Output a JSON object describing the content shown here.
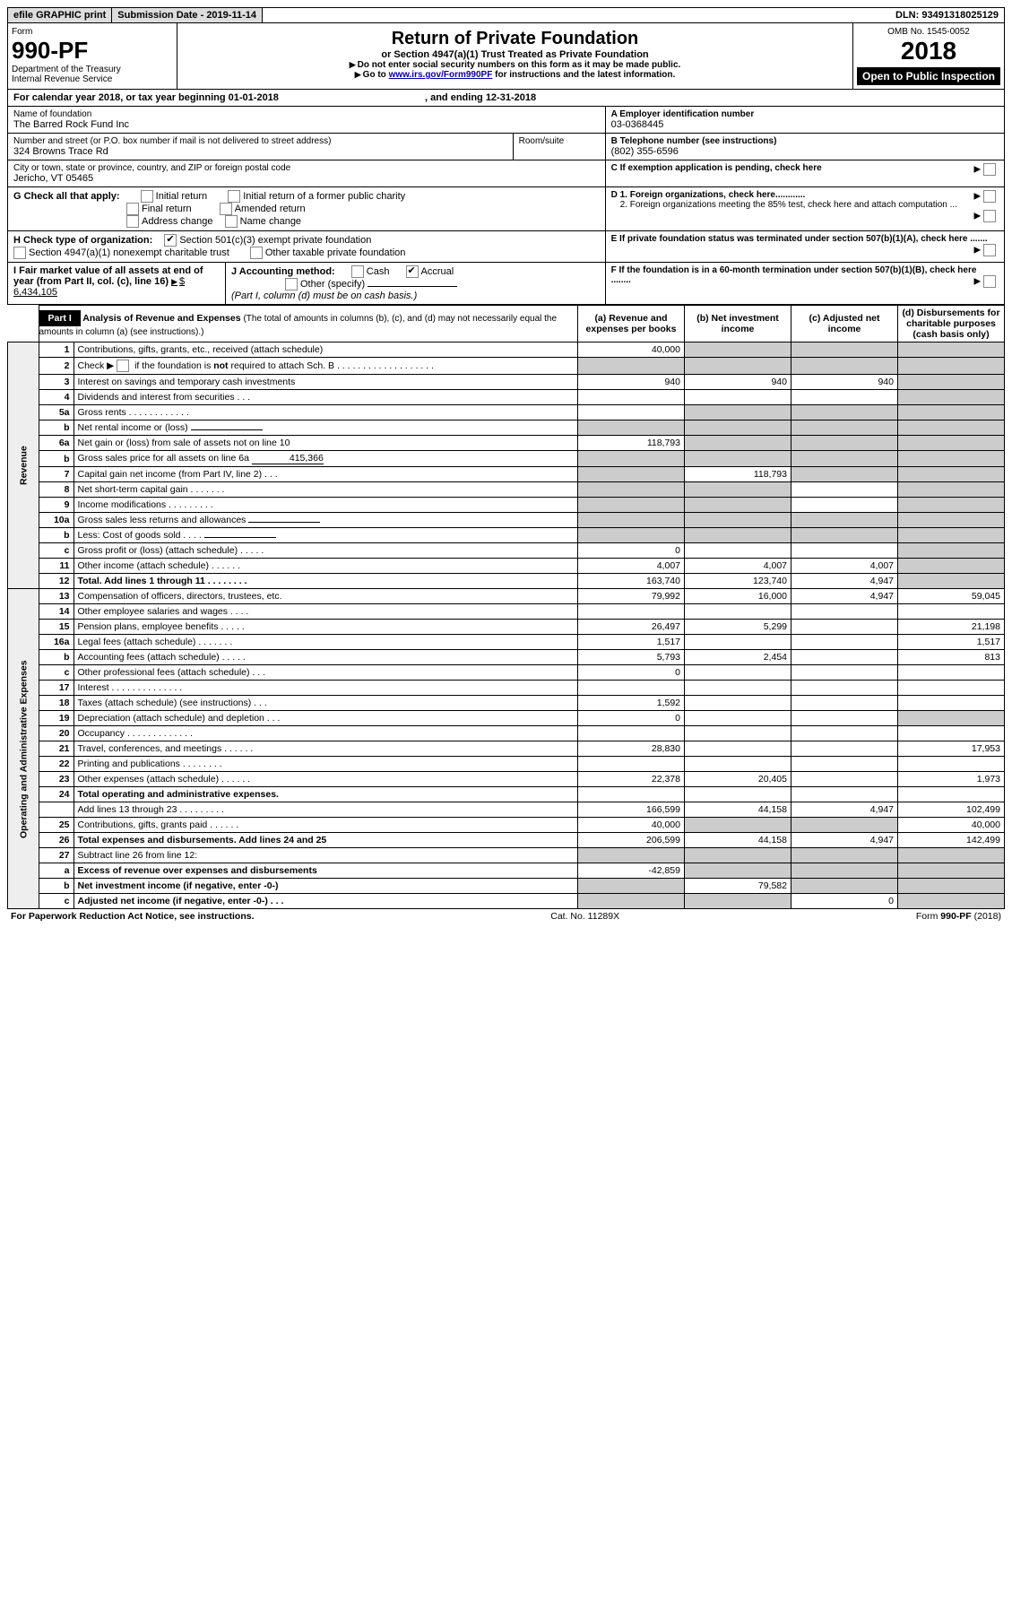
{
  "topbar": {
    "efile": "efile GRAPHIC print",
    "sub_label": "Submission Date - 2019-11-14",
    "dln_label": "DLN: 93491318025129"
  },
  "header": {
    "form_word": "Form",
    "form_no": "990-PF",
    "dept": "Department of the Treasury",
    "irs": "Internal Revenue Service",
    "title": "Return of Private Foundation",
    "subtitle": "or Section 4947(a)(1) Trust Treated as Private Foundation",
    "warn1": "Do not enter social security numbers on this form as it may be made public.",
    "warn2_a": "Go to ",
    "warn2_link": "www.irs.gov/Form990PF",
    "warn2_b": " for instructions and the latest information.",
    "omb": "OMB No. 1545-0052",
    "year": "2018",
    "open": "Open to Public Inspection"
  },
  "cal": {
    "line": "For calendar year 2018, or tax year beginning 01-01-2018",
    "end": ", and ending 12-31-2018"
  },
  "info": {
    "name_label": "Name of foundation",
    "name": "The Barred Rock Fund Inc",
    "addr_label": "Number and street (or P.O. box number if mail is not delivered to street address)",
    "addr": "324 Browns Trace Rd",
    "room_label": "Room/suite",
    "city_label": "City or town, state or province, country, and ZIP or foreign postal code",
    "city": "Jericho, VT  05465",
    "a_label": "A Employer identification number",
    "a_val": "03-0368445",
    "b_label": "B Telephone number (see instructions)",
    "b_val": "(802) 355-6596",
    "c_label": "C If exemption application is pending, check here",
    "g_label": "G Check all that apply:",
    "g_initial": "Initial return",
    "g_initial_public": "Initial return of a former public charity",
    "g_final": "Final return",
    "g_amended": "Amended return",
    "g_addr": "Address change",
    "g_name": "Name change",
    "d1": "D 1. Foreign organizations, check here............",
    "d2": "2. Foreign organizations meeting the 85% test, check here and attach computation ...",
    "h_label": "H Check type of organization:",
    "h_501": "Section 501(c)(3) exempt private foundation",
    "h_4947": "Section 4947(a)(1) nonexempt charitable trust",
    "h_other": "Other taxable private foundation",
    "e_label": "E  If private foundation status was terminated under section 507(b)(1)(A), check here .......",
    "i_label": "I Fair market value of all assets at end of year (from Part II, col. (c), line 16)",
    "i_val": "$  6,434,105",
    "j_label": "J Accounting method:",
    "j_cash": "Cash",
    "j_accrual": "Accrual",
    "j_other": "Other (specify)",
    "j_note": "(Part I, column (d) must be on cash basis.)",
    "f_label": "F  If the foundation is in a 60-month termination under section 507(b)(1)(B), check here ........"
  },
  "part1": {
    "label": "Part I",
    "title": "Analysis of Revenue and Expenses",
    "note": "(The total of amounts in columns (b), (c), and (d) may not necessarily equal the amounts in column (a) (see instructions).)",
    "col_a": "(a)   Revenue and expenses per books",
    "col_b": "(b)   Net investment income",
    "col_c": "(c)   Adjusted net income",
    "col_d": "(d)   Disbursements for charitable purposes (cash basis only)",
    "rev_label": "Revenue",
    "exp_label": "Operating and Administrative Expenses"
  },
  "lines": {
    "1": {
      "t": "Contributions, gifts, grants, etc., received (attach schedule)",
      "a": "40,000"
    },
    "2": {
      "t": "Check ▶ ☐ if the foundation is not required to attach Sch. B   . . . . . . . . . . . . . . . . . . ."
    },
    "3": {
      "t": "Interest on savings and temporary cash investments",
      "a": "940",
      "b": "940",
      "c": "940"
    },
    "4": {
      "t": "Dividends and interest from securities   .  .  ."
    },
    "5a": {
      "t": "Gross rents   . . . . . . . . . . . ."
    },
    "5b": {
      "t": "Net rental income or (loss)  "
    },
    "6a": {
      "t": "Net gain or (loss) from sale of assets not on line 10",
      "a": "118,793"
    },
    "6b": {
      "t": "Gross sales price for all assets on line 6a ",
      "u": "415,366"
    },
    "7": {
      "t": "Capital gain net income (from Part IV, line 2)   .  .  .",
      "b": "118,793"
    },
    "8": {
      "t": "Net short-term capital gain  . . . . . . ."
    },
    "9": {
      "t": "Income modifications  . . . . . . . . ."
    },
    "10a": {
      "t": "Gross sales less returns and allowances  "
    },
    "10b": {
      "t": "Less: Cost of goods sold   .  .  .  .  "
    },
    "10c": {
      "t": "Gross profit or (loss) (attach schedule)   .  .  .  .  .",
      "a": "0"
    },
    "11": {
      "t": "Other income (attach schedule)   .  .  .  .  .  .",
      "a": "4,007",
      "b": "4,007",
      "c": "4,007"
    },
    "12": {
      "t": "Total. Add lines 1 through 11   .  .  .  .  .  .  .  .",
      "a": "163,740",
      "b": "123,740",
      "c": "4,947"
    },
    "13": {
      "t": "Compensation of officers, directors, trustees, etc.",
      "a": "79,992",
      "b": "16,000",
      "c": "4,947",
      "d": "59,045"
    },
    "14": {
      "t": "Other employee salaries and wages   .  .  .  ."
    },
    "15": {
      "t": "Pension plans, employee benefits   .  .  .  .  .",
      "a": "26,497",
      "b": "5,299",
      "d": "21,198"
    },
    "16a": {
      "t": "Legal fees (attach schedule)  . . . . . . .",
      "a": "1,517",
      "d": "1,517"
    },
    "16b": {
      "t": "Accounting fees (attach schedule)   .  .  .  .  .",
      "a": "5,793",
      "b": "2,454",
      "d": "813"
    },
    "16c": {
      "t": "Other professional fees (attach schedule)   .  .  .",
      "a": "0"
    },
    "17": {
      "t": "Interest  . . . . . . . . . . . . . ."
    },
    "18": {
      "t": "Taxes (attach schedule) (see instructions)   .  .  .",
      "a": "1,592"
    },
    "19": {
      "t": "Depreciation (attach schedule) and depletion   .  .  .",
      "a": "0"
    },
    "20": {
      "t": "Occupancy  . . . . . . . . . . . . ."
    },
    "21": {
      "t": "Travel, conferences, and meetings  . . . . . .",
      "a": "28,830",
      "d": "17,953"
    },
    "22": {
      "t": "Printing and publications  . . . . . . . ."
    },
    "23": {
      "t": "Other expenses (attach schedule)   .  .  .  .  .  .",
      "a": "22,378",
      "b": "20,405",
      "d": "1,973"
    },
    "24": {
      "t": "Total operating and administrative expenses."
    },
    "24s": {
      "t": "Add lines 13 through 23   .  .  .  .  .  .  .  .  .",
      "a": "166,599",
      "b": "44,158",
      "c": "4,947",
      "d": "102,499"
    },
    "25": {
      "t": "Contributions, gifts, grants paid   .  .  .  .  .  .",
      "a": "40,000",
      "d": "40,000"
    },
    "26": {
      "t": "Total expenses and disbursements. Add lines 24 and 25",
      "a": "206,599",
      "b": "44,158",
      "c": "4,947",
      "d": "142,499"
    },
    "27": {
      "t": "Subtract line 26 from line 12:"
    },
    "27a": {
      "t": "Excess of revenue over expenses and disbursements",
      "a": "-42,859"
    },
    "27b": {
      "t": "Net investment income (if negative, enter -0-)",
      "b": "79,582"
    },
    "27c": {
      "t": "Adjusted net income (if negative, enter -0-)   .  .  .",
      "c": "0"
    }
  },
  "footer": {
    "left": "For Paperwork Reduction Act Notice, see instructions.",
    "mid": "Cat. No. 11289X",
    "right": "Form 990-PF (2018)"
  }
}
